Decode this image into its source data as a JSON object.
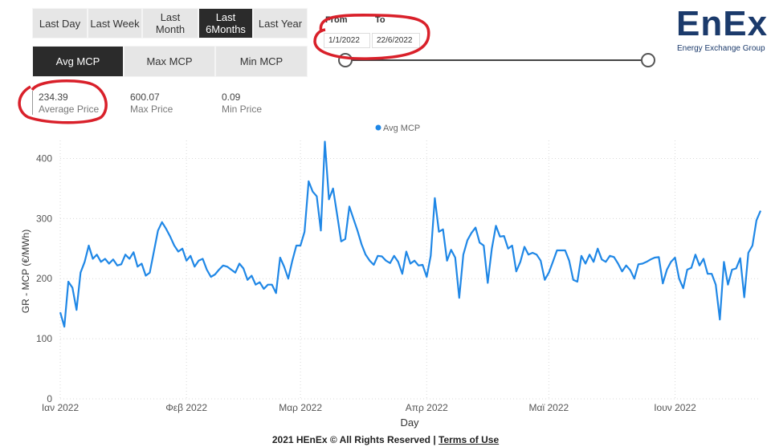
{
  "period_buttons": [
    {
      "label": "Last Day",
      "active": false
    },
    {
      "label": "Last Week",
      "active": false
    },
    {
      "label": "Last Month",
      "active": false
    },
    {
      "label": "Last 6Months",
      "active": true
    },
    {
      "label": "Last Year",
      "active": false
    }
  ],
  "metric_buttons": [
    {
      "label": "Avg MCP",
      "active": true
    },
    {
      "label": "Max MCP",
      "active": false
    },
    {
      "label": "Min MCP",
      "active": false
    }
  ],
  "kpis": [
    {
      "value": "234.39",
      "label": "Average Price"
    },
    {
      "value": "600.07",
      "label": "Max Price"
    },
    {
      "value": "0.09",
      "label": "Min Price"
    }
  ],
  "date_range": {
    "from_label": "From",
    "from_value": "1/1/2022",
    "to_label": "To",
    "to_value": "22/6/2022"
  },
  "logo": {
    "main": "EnEx",
    "sub": "Energy Exchange Group"
  },
  "annotation_color": "#d9202a",
  "chart_data": {
    "type": "line",
    "legend": "Avg MCP",
    "legend_placement": "top-center",
    "xlabel": "Day",
    "ylabel": "GR - MCP (€/MWh)",
    "ylim": [
      0,
      430
    ],
    "yticks": [
      0,
      100,
      200,
      300,
      400
    ],
    "x_range": [
      "2022-01-01",
      "2022-06-22"
    ],
    "xtick_labels": [
      {
        "label": "Ιαν 2022",
        "date": "2022-01-01"
      },
      {
        "label": "Φεβ 2022",
        "date": "2022-02-01"
      },
      {
        "label": "Μαρ 2022",
        "date": "2022-03-01"
      },
      {
        "label": "Απρ 2022",
        "date": "2022-04-01"
      },
      {
        "label": "Μαϊ 2022",
        "date": "2022-05-01"
      },
      {
        "label": "Ιουν 2022",
        "date": "2022-06-01"
      }
    ],
    "grid": true,
    "color": "#1f87e6",
    "series": [
      {
        "name": "Avg MCP",
        "values": [
          [
            "2022-01-01",
            144
          ],
          [
            "2022-01-02",
            120
          ],
          [
            "2022-01-03",
            195
          ],
          [
            "2022-01-04",
            185
          ],
          [
            "2022-01-05",
            148
          ],
          [
            "2022-01-06",
            210
          ],
          [
            "2022-01-07",
            228
          ],
          [
            "2022-01-08",
            255
          ],
          [
            "2022-01-09",
            233
          ],
          [
            "2022-01-10",
            240
          ],
          [
            "2022-01-11",
            228
          ],
          [
            "2022-01-12",
            233
          ],
          [
            "2022-01-13",
            225
          ],
          [
            "2022-01-14",
            232
          ],
          [
            "2022-01-15",
            222
          ],
          [
            "2022-01-16",
            224
          ],
          [
            "2022-01-17",
            240
          ],
          [
            "2022-01-18",
            233
          ],
          [
            "2022-01-19",
            244
          ],
          [
            "2022-01-20",
            220
          ],
          [
            "2022-01-21",
            225
          ],
          [
            "2022-01-22",
            205
          ],
          [
            "2022-01-23",
            210
          ],
          [
            "2022-01-24",
            245
          ],
          [
            "2022-01-25",
            280
          ],
          [
            "2022-01-26",
            294
          ],
          [
            "2022-01-27",
            283
          ],
          [
            "2022-01-28",
            270
          ],
          [
            "2022-01-29",
            255
          ],
          [
            "2022-01-30",
            245
          ],
          [
            "2022-01-31",
            250
          ],
          [
            "2022-02-01",
            230
          ],
          [
            "2022-02-02",
            238
          ],
          [
            "2022-02-03",
            220
          ],
          [
            "2022-02-04",
            230
          ],
          [
            "2022-02-05",
            233
          ],
          [
            "2022-02-06",
            215
          ],
          [
            "2022-02-07",
            203
          ],
          [
            "2022-02-08",
            207
          ],
          [
            "2022-02-09",
            215
          ],
          [
            "2022-02-10",
            222
          ],
          [
            "2022-02-11",
            220
          ],
          [
            "2022-02-12",
            215
          ],
          [
            "2022-02-13",
            210
          ],
          [
            "2022-02-14",
            225
          ],
          [
            "2022-02-15",
            217
          ],
          [
            "2022-02-16",
            198
          ],
          [
            "2022-02-17",
            205
          ],
          [
            "2022-02-18",
            190
          ],
          [
            "2022-02-19",
            194
          ],
          [
            "2022-02-20",
            183
          ],
          [
            "2022-02-21",
            190
          ],
          [
            "2022-02-22",
            190
          ],
          [
            "2022-02-23",
            176
          ],
          [
            "2022-02-24",
            235
          ],
          [
            "2022-02-25",
            220
          ],
          [
            "2022-02-26",
            200
          ],
          [
            "2022-02-27",
            230
          ],
          [
            "2022-02-28",
            255
          ],
          [
            "2022-03-01",
            255
          ],
          [
            "2022-03-02",
            278
          ],
          [
            "2022-03-03",
            362
          ],
          [
            "2022-03-04",
            345
          ],
          [
            "2022-03-05",
            337
          ],
          [
            "2022-03-06",
            280
          ],
          [
            "2022-03-07",
            428
          ],
          [
            "2022-03-08",
            332
          ],
          [
            "2022-03-09",
            350
          ],
          [
            "2022-03-10",
            307
          ],
          [
            "2022-03-11",
            262
          ],
          [
            "2022-03-12",
            266
          ],
          [
            "2022-03-13",
            320
          ],
          [
            "2022-03-14",
            300
          ],
          [
            "2022-03-15",
            280
          ],
          [
            "2022-03-16",
            257
          ],
          [
            "2022-03-17",
            240
          ],
          [
            "2022-03-18",
            230
          ],
          [
            "2022-03-19",
            223
          ],
          [
            "2022-03-20",
            238
          ],
          [
            "2022-03-21",
            237
          ],
          [
            "2022-03-22",
            230
          ],
          [
            "2022-03-23",
            226
          ],
          [
            "2022-03-24",
            238
          ],
          [
            "2022-03-25",
            228
          ],
          [
            "2022-03-26",
            208
          ],
          [
            "2022-03-27",
            245
          ],
          [
            "2022-03-28",
            225
          ],
          [
            "2022-03-29",
            230
          ],
          [
            "2022-03-30",
            222
          ],
          [
            "2022-03-31",
            223
          ],
          [
            "2022-04-01",
            203
          ],
          [
            "2022-04-02",
            238
          ],
          [
            "2022-04-03",
            334
          ],
          [
            "2022-04-04",
            278
          ],
          [
            "2022-04-05",
            282
          ],
          [
            "2022-04-06",
            230
          ],
          [
            "2022-04-07",
            248
          ],
          [
            "2022-04-08",
            235
          ],
          [
            "2022-04-09",
            168
          ],
          [
            "2022-04-10",
            240
          ],
          [
            "2022-04-11",
            264
          ],
          [
            "2022-04-12",
            276
          ],
          [
            "2022-04-13",
            285
          ],
          [
            "2022-04-14",
            260
          ],
          [
            "2022-04-15",
            255
          ],
          [
            "2022-04-16",
            193
          ],
          [
            "2022-04-17",
            250
          ],
          [
            "2022-04-18",
            288
          ],
          [
            "2022-04-19",
            270
          ],
          [
            "2022-04-20",
            271
          ],
          [
            "2022-04-21",
            250
          ],
          [
            "2022-04-22",
            255
          ],
          [
            "2022-04-23",
            212
          ],
          [
            "2022-04-24",
            228
          ],
          [
            "2022-04-25",
            253
          ],
          [
            "2022-04-26",
            240
          ],
          [
            "2022-04-27",
            243
          ],
          [
            "2022-04-28",
            240
          ],
          [
            "2022-04-29",
            230
          ],
          [
            "2022-04-30",
            198
          ],
          [
            "2022-05-01",
            210
          ],
          [
            "2022-05-02",
            228
          ],
          [
            "2022-05-03",
            247
          ],
          [
            "2022-05-04",
            247
          ],
          [
            "2022-05-05",
            247
          ],
          [
            "2022-05-06",
            230
          ],
          [
            "2022-05-07",
            198
          ],
          [
            "2022-05-08",
            195
          ],
          [
            "2022-05-09",
            238
          ],
          [
            "2022-05-10",
            225
          ],
          [
            "2022-05-11",
            240
          ],
          [
            "2022-05-12",
            228
          ],
          [
            "2022-05-13",
            250
          ],
          [
            "2022-05-14",
            232
          ],
          [
            "2022-05-15",
            228
          ],
          [
            "2022-05-16",
            238
          ],
          [
            "2022-05-17",
            236
          ],
          [
            "2022-05-18",
            225
          ],
          [
            "2022-05-19",
            212
          ],
          [
            "2022-05-20",
            222
          ],
          [
            "2022-05-21",
            214
          ],
          [
            "2022-05-22",
            200
          ],
          [
            "2022-05-23",
            224
          ],
          [
            "2022-05-24",
            225
          ],
          [
            "2022-05-25",
            228
          ],
          [
            "2022-05-26",
            232
          ],
          [
            "2022-05-27",
            235
          ],
          [
            "2022-05-28",
            236
          ],
          [
            "2022-05-29",
            192
          ],
          [
            "2022-05-30",
            215
          ],
          [
            "2022-05-31",
            228
          ],
          [
            "2022-06-01",
            235
          ],
          [
            "2022-06-02",
            200
          ],
          [
            "2022-06-03",
            184
          ],
          [
            "2022-06-04",
            215
          ],
          [
            "2022-06-05",
            218
          ],
          [
            "2022-06-06",
            240
          ],
          [
            "2022-06-07",
            222
          ],
          [
            "2022-06-08",
            233
          ],
          [
            "2022-06-09",
            208
          ],
          [
            "2022-06-10",
            208
          ],
          [
            "2022-06-11",
            190
          ],
          [
            "2022-06-12",
            132
          ],
          [
            "2022-06-13",
            228
          ],
          [
            "2022-06-14",
            190
          ],
          [
            "2022-06-15",
            215
          ],
          [
            "2022-06-16",
            217
          ],
          [
            "2022-06-17",
            234
          ],
          [
            "2022-06-18",
            169
          ],
          [
            "2022-06-19",
            243
          ],
          [
            "2022-06-20",
            255
          ],
          [
            "2022-06-21",
            297
          ],
          [
            "2022-06-22",
            313
          ]
        ]
      }
    ]
  },
  "footer": {
    "text": "2021 HEnEx © All Rights Reserved | ",
    "link": "Terms of Use"
  }
}
